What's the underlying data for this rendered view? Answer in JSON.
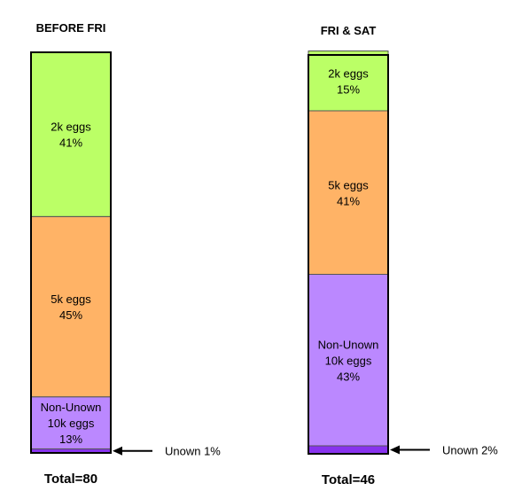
{
  "chart_data": {
    "type": "bar",
    "stacked": true,
    "percent_stacked": true,
    "grid": false,
    "legend": "none",
    "bars": [
      {
        "title": "BEFORE FRI",
        "total_label": "Total=80",
        "segments": [
          {
            "label": "Unown",
            "percent": 1,
            "label_text": "Unown 1%",
            "label_position": "callout",
            "color": "#8833ee"
          },
          {
            "label": "Non-Unown 10k eggs",
            "percent": 13,
            "label_lines": [
              "Non-Unown",
              "10k eggs",
              "13%"
            ],
            "color": "#bb88ff"
          },
          {
            "label": "5k eggs",
            "percent": 45,
            "label_lines": [
              "5k eggs",
              "45%"
            ],
            "color": "#ffb366"
          },
          {
            "label": "2k eggs",
            "percent": 41,
            "label_lines": [
              "2k eggs",
              "41%"
            ],
            "color": "#bbff66"
          }
        ]
      },
      {
        "title": "FRI & SAT",
        "total_label": "Total=46",
        "segments": [
          {
            "label": "Unown",
            "percent": 2,
            "label_text": "Unown 2%",
            "label_position": "callout",
            "color": "#8833ee"
          },
          {
            "label": "Non-Unown 10k eggs",
            "percent": 43,
            "label_lines": [
              "Non-Unown",
              "10k eggs",
              "43%"
            ],
            "color": "#bb88ff"
          },
          {
            "label": "5k eggs",
            "percent": 41,
            "label_lines": [
              "5k eggs",
              "41%"
            ],
            "color": "#ffb366"
          },
          {
            "label": "2k eggs",
            "percent": 15,
            "label_lines": [
              "2k eggs",
              "15%"
            ],
            "color": "#bbff66"
          }
        ]
      }
    ]
  }
}
